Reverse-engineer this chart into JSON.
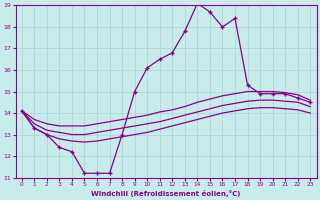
{
  "xlabel": "Windchill (Refroidissement éolien,°C)",
  "bg_color": "#c8ecec",
  "grid_color": "#a8d4d4",
  "line_color": "#880088",
  "xlim": [
    -0.5,
    23.5
  ],
  "ylim": [
    11,
    19
  ],
  "xticks": [
    0,
    1,
    2,
    3,
    4,
    5,
    6,
    7,
    8,
    9,
    10,
    11,
    12,
    13,
    14,
    15,
    16,
    17,
    18,
    19,
    20,
    21,
    22,
    23
  ],
  "yticks": [
    11,
    12,
    13,
    14,
    15,
    16,
    17,
    18,
    19
  ],
  "main_line_x": [
    0,
    1,
    2,
    3,
    4,
    5,
    6,
    7,
    8,
    9,
    10,
    11,
    12,
    13,
    14,
    15,
    16,
    17,
    18,
    19,
    20,
    21,
    22,
    23
  ],
  "main_line_y": [
    14.1,
    13.3,
    13.0,
    12.4,
    12.2,
    11.2,
    11.2,
    11.2,
    13.0,
    15.0,
    16.1,
    16.5,
    16.8,
    17.8,
    19.1,
    18.7,
    18.0,
    18.4,
    15.3,
    14.9,
    14.9,
    14.9,
    14.7,
    14.5
  ],
  "smooth1_x": [
    0,
    1,
    2,
    3,
    4,
    5,
    6,
    7,
    8,
    9,
    10,
    11,
    12,
    13,
    14,
    15,
    16,
    17,
    18,
    19,
    20,
    21,
    22,
    23
  ],
  "smooth1_y": [
    14.1,
    13.7,
    13.5,
    13.4,
    13.4,
    13.4,
    13.5,
    13.6,
    13.7,
    13.8,
    13.9,
    14.05,
    14.15,
    14.3,
    14.5,
    14.65,
    14.8,
    14.9,
    15.0,
    15.0,
    15.0,
    14.95,
    14.85,
    14.6
  ],
  "smooth2_x": [
    0,
    1,
    2,
    3,
    4,
    5,
    6,
    7,
    8,
    9,
    10,
    11,
    12,
    13,
    14,
    15,
    16,
    17,
    18,
    19,
    20,
    21,
    22,
    23
  ],
  "smooth2_y": [
    14.1,
    13.5,
    13.2,
    13.1,
    13.0,
    13.0,
    13.1,
    13.2,
    13.3,
    13.4,
    13.5,
    13.6,
    13.75,
    13.9,
    14.05,
    14.2,
    14.35,
    14.45,
    14.55,
    14.6,
    14.6,
    14.55,
    14.5,
    14.3
  ],
  "smooth3_x": [
    0,
    1,
    2,
    3,
    4,
    5,
    6,
    7,
    8,
    9,
    10,
    11,
    12,
    13,
    14,
    15,
    16,
    17,
    18,
    19,
    20,
    21,
    22,
    23
  ],
  "smooth3_y": [
    14.1,
    13.3,
    13.0,
    12.8,
    12.7,
    12.65,
    12.7,
    12.8,
    12.9,
    13.0,
    13.1,
    13.25,
    13.4,
    13.55,
    13.7,
    13.85,
    14.0,
    14.1,
    14.2,
    14.25,
    14.25,
    14.2,
    14.15,
    14.0
  ]
}
